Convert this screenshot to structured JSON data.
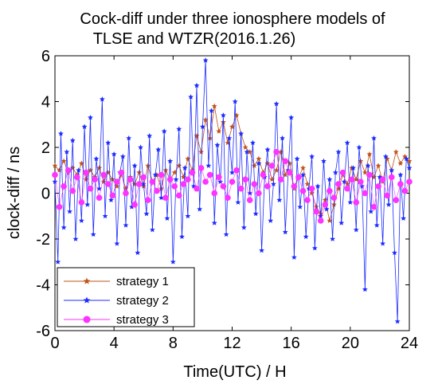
{
  "chart_data": {
    "type": "line",
    "title_line1": "Cock-diff under three ionosphere models of",
    "title_line2": "TLSE and WTZR(2016.1.26)",
    "xlabel": "Time(UTC) /  H",
    "ylabel": "clock-diff / ns",
    "xlim": [
      0,
      24
    ],
    "ylim": [
      -6,
      6
    ],
    "xticks": [
      0,
      4,
      8,
      12,
      16,
      20,
      24
    ],
    "yticks": [
      -6,
      -4,
      -2,
      0,
      2,
      4,
      6
    ],
    "grid": false,
    "legend_position": "bottom-left",
    "colors": {
      "strategy_1": "#c0521a",
      "strategy_2": "#1c2bff",
      "strategy_3": "#ff33ff"
    },
    "series": [
      {
        "name": "strategy 1",
        "color": "#c0521a",
        "marker": "star",
        "x": [
          0.0,
          0.3,
          0.6,
          0.9,
          1.2,
          1.5,
          1.8,
          2.1,
          2.4,
          2.7,
          3.0,
          3.3,
          3.6,
          3.9,
          4.2,
          4.5,
          4.8,
          5.1,
          5.4,
          5.7,
          6.0,
          6.3,
          6.6,
          6.9,
          7.2,
          7.5,
          7.8,
          8.1,
          8.4,
          8.7,
          9.0,
          9.3,
          9.6,
          9.9,
          10.2,
          10.5,
          10.8,
          11.1,
          11.4,
          11.7,
          12.0,
          12.3,
          12.6,
          12.9,
          13.2,
          13.5,
          13.8,
          14.1,
          14.4,
          14.7,
          15.0,
          15.3,
          15.6,
          15.9,
          16.2,
          16.5,
          16.8,
          17.1,
          17.4,
          17.7,
          18.0,
          18.3,
          18.6,
          18.9,
          19.2,
          19.5,
          19.8,
          20.1,
          20.4,
          20.7,
          21.0,
          21.3,
          21.6,
          21.9,
          22.2,
          22.5,
          22.8,
          23.1,
          23.4,
          23.7,
          24.0
        ],
        "y": [
          1.2,
          1.0,
          1.4,
          0.9,
          1.1,
          0.8,
          1.3,
          0.6,
          1.0,
          0.7,
          1.1,
          0.5,
          0.9,
          0.6,
          0.3,
          0.8,
          0.2,
          0.7,
          0.4,
          0.9,
          0.3,
          1.2,
          0.5,
          0.8,
          0.2,
          1.0,
          0.6,
          0.9,
          1.2,
          0.7,
          1.5,
          1.0,
          2.5,
          1.8,
          3.2,
          2.4,
          3.8,
          2.7,
          3.1,
          2.2,
          2.9,
          3.4,
          2.6,
          2.0,
          1.8,
          1.2,
          1.5,
          0.9,
          1.3,
          0.6,
          1.0,
          1.8,
          0.8,
          1.3,
          0.2,
          0.7,
          1.1,
          0.4,
          0.0,
          -0.6,
          -0.9,
          -0.3,
          -1.2,
          -0.5,
          0.2,
          0.8,
          0.4,
          1.1,
          0.6,
          1.4,
          0.9,
          1.7,
          0.7,
          1.2,
          0.5,
          1.5,
          1.0,
          1.8,
          1.3,
          1.6,
          1.4
        ],
        "linewidth": 0.8
      },
      {
        "name": "strategy 2",
        "color": "#1c2bff",
        "marker": "star",
        "x": [
          0.0,
          0.2,
          0.4,
          0.6,
          0.8,
          1.0,
          1.2,
          1.4,
          1.6,
          1.8,
          2.0,
          2.2,
          2.4,
          2.6,
          2.8,
          3.0,
          3.2,
          3.4,
          3.6,
          3.8,
          4.0,
          4.2,
          4.4,
          4.6,
          4.8,
          5.0,
          5.2,
          5.4,
          5.6,
          5.8,
          6.0,
          6.2,
          6.4,
          6.6,
          6.8,
          7.0,
          7.2,
          7.4,
          7.6,
          7.8,
          8.0,
          8.2,
          8.4,
          8.6,
          8.8,
          9.0,
          9.2,
          9.4,
          9.6,
          9.8,
          10.0,
          10.2,
          10.4,
          10.6,
          10.8,
          11.0,
          11.2,
          11.4,
          11.6,
          11.8,
          12.0,
          12.2,
          12.4,
          12.6,
          12.8,
          13.0,
          13.2,
          13.4,
          13.6,
          13.8,
          14.0,
          14.2,
          14.4,
          14.6,
          14.8,
          15.0,
          15.2,
          15.4,
          15.6,
          15.8,
          16.0,
          16.2,
          16.4,
          16.6,
          16.8,
          17.0,
          17.2,
          17.4,
          17.6,
          17.8,
          18.0,
          18.2,
          18.4,
          18.6,
          18.8,
          19.0,
          19.2,
          19.4,
          19.6,
          19.8,
          20.0,
          20.2,
          20.4,
          20.6,
          20.8,
          21.0,
          21.2,
          21.4,
          21.6,
          21.8,
          22.0,
          22.2,
          22.4,
          22.6,
          22.8,
          23.0,
          23.2,
          23.4,
          23.6,
          23.8,
          24.0
        ],
        "y": [
          0.5,
          -3.0,
          2.6,
          -1.5,
          1.8,
          -0.8,
          2.3,
          -2.0,
          1.0,
          -1.2,
          2.9,
          -0.5,
          3.3,
          -1.8,
          1.5,
          0.2,
          4.1,
          -1.0,
          2.2,
          -0.3,
          1.7,
          -2.2,
          0.9,
          1.6,
          -1.4,
          2.4,
          -0.6,
          1.2,
          -2.6,
          2.0,
          0.4,
          -0.9,
          2.5,
          -1.6,
          0.8,
          1.9,
          -0.2,
          2.7,
          -1.1,
          1.4,
          -3.0,
          0.6,
          2.8,
          -1.9,
          1.1,
          -1.0,
          4.2,
          0.3,
          4.7,
          -0.7,
          2.9,
          5.8,
          1.2,
          3.6,
          -1.3,
          2.1,
          0.5,
          3.4,
          -1.8,
          2.4,
          0.9,
          4.0,
          -0.4,
          2.6,
          -1.5,
          1.8,
          0.0,
          2.2,
          -0.9,
          1.3,
          -2.5,
          0.7,
          1.9,
          -1.2,
          0.4,
          3.9,
          -0.3,
          2.4,
          -1.7,
          1.0,
          3.3,
          -2.8,
          1.5,
          -0.6,
          0.8,
          -1.9,
          0.2,
          1.6,
          -2.4,
          0.3,
          -1.0,
          1.4,
          -0.7,
          0.6,
          -2.0,
          0.9,
          1.8,
          -1.3,
          0.5,
          2.2,
          -0.4,
          1.1,
          -1.6,
          2.0,
          0.3,
          -4.2,
          1.2,
          -0.8,
          2.4,
          -1.4,
          0.7,
          -2.2,
          1.6,
          -0.5,
          1.0,
          -2.6,
          -5.6,
          0.8,
          -1.1,
          1.5,
          1.1
        ],
        "linewidth": 0.8
      },
      {
        "name": "strategy 3",
        "color": "#ff33ff",
        "marker": "circle",
        "x": [
          0.0,
          0.3,
          0.6,
          0.9,
          1.2,
          1.5,
          1.8,
          2.1,
          2.4,
          2.7,
          3.0,
          3.3,
          3.6,
          3.9,
          4.2,
          4.5,
          4.8,
          5.1,
          5.4,
          5.7,
          6.0,
          6.3,
          6.6,
          6.9,
          7.2,
          7.5,
          7.8,
          8.1,
          8.4,
          8.7,
          9.0,
          9.3,
          9.6,
          9.9,
          10.2,
          10.5,
          10.8,
          11.1,
          11.4,
          11.7,
          12.0,
          12.3,
          12.6,
          12.9,
          13.2,
          13.5,
          13.8,
          14.1,
          14.4,
          14.7,
          15.0,
          15.3,
          15.6,
          15.9,
          16.2,
          16.5,
          16.8,
          17.1,
          17.4,
          17.7,
          18.0,
          18.3,
          18.6,
          18.9,
          19.2,
          19.5,
          19.8,
          20.1,
          20.4,
          20.7,
          21.0,
          21.3,
          21.6,
          21.9,
          22.2,
          22.5,
          22.8,
          23.1,
          23.4,
          23.7,
          24.0
        ],
        "y": [
          0.8,
          -0.6,
          0.3,
          1.0,
          0.1,
          0.7,
          -0.4,
          0.9,
          0.2,
          0.6,
          -0.2,
          0.8,
          0.4,
          -0.1,
          0.5,
          0.9,
          0.0,
          0.6,
          -0.5,
          0.4,
          0.7,
          -0.3,
          0.5,
          0.1,
          0.8,
          -0.2,
          0.6,
          0.3,
          -0.1,
          0.4,
          0.6,
          0.9,
          0.2,
          1.1,
          0.5,
          0.8,
          0.0,
          0.7,
          0.3,
          -0.2,
          0.5,
          1.0,
          0.2,
          0.6,
          -0.3,
          0.4,
          0.0,
          0.8,
          0.3,
          1.2,
          1.8,
          0.6,
          1.4,
          0.9,
          0.3,
          0.7,
          0.1,
          -0.3,
          0.2,
          -0.8,
          -1.2,
          -0.5,
          0.1,
          -0.2,
          0.4,
          0.9,
          0.2,
          0.6,
          -0.4,
          0.5,
          0.0,
          0.8,
          -0.6,
          0.3,
          0.6,
          -0.1,
          0.7,
          -0.3,
          0.4,
          0.1,
          0.5
        ],
        "linewidth": 0.6
      }
    ]
  }
}
